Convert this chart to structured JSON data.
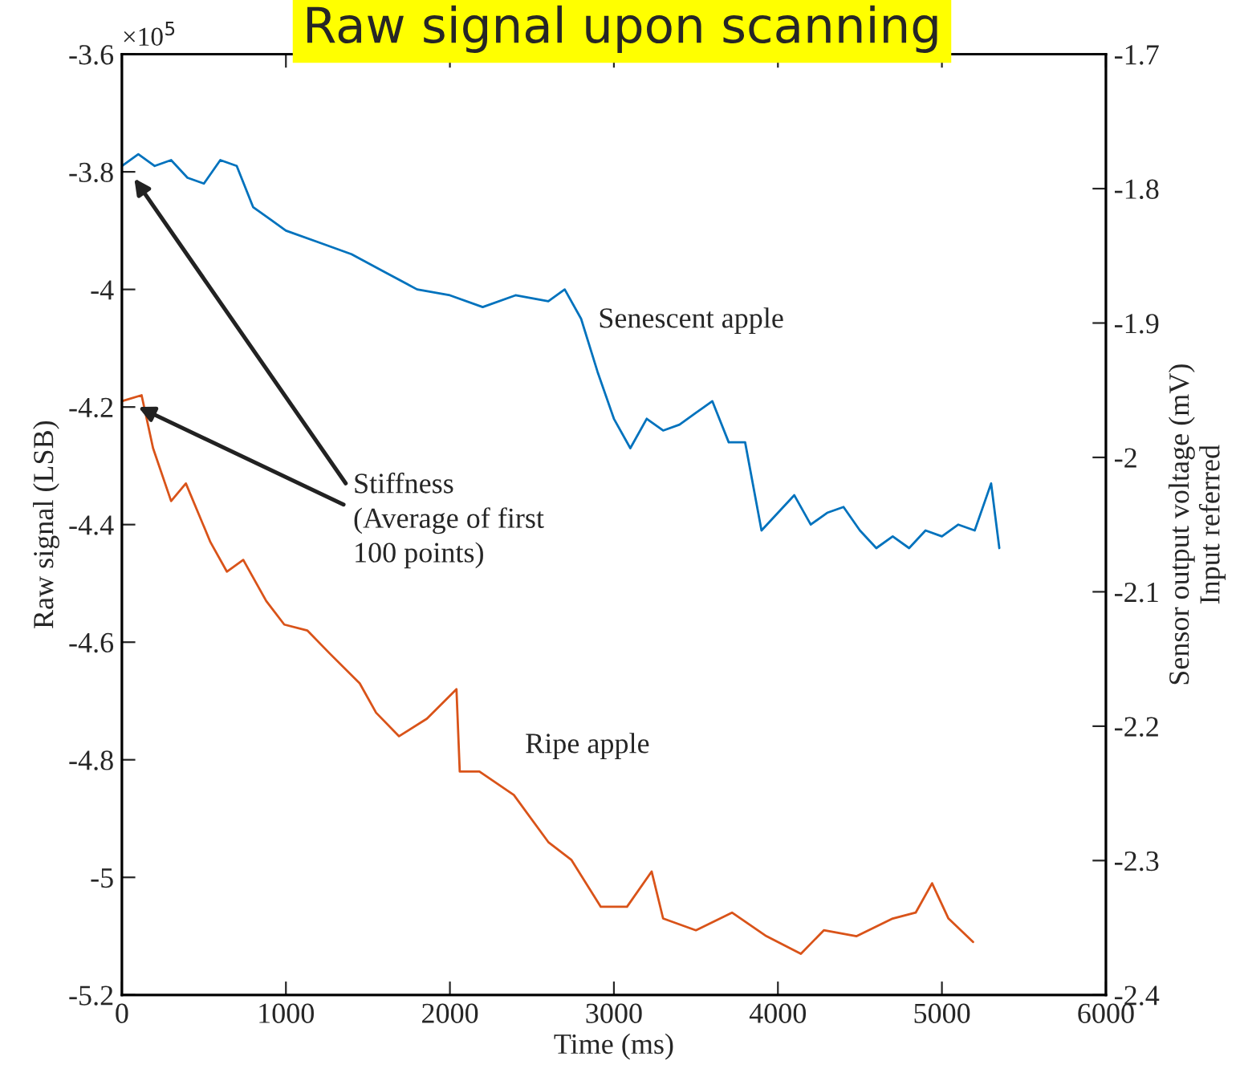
{
  "chart_data": {
    "type": "line",
    "title": "Raw signal upon scanning",
    "xlabel": "Time (ms)",
    "ylabel": "Raw signal (LSB)",
    "y2label": "Sensor output voltage (mV)\nInput referred",
    "xlim": [
      0,
      6000
    ],
    "xticks": [
      0,
      1000,
      2000,
      3000,
      4000,
      5000,
      6000
    ],
    "ylim": [
      -5.2,
      -3.6
    ],
    "yticks": [
      -5.2,
      -5,
      -4.8,
      -4.6,
      -4.4,
      -4.2,
      -4,
      -3.8,
      -3.6
    ],
    "y2lim": [
      -2.4,
      -1.7
    ],
    "y2ticks": [
      -2.4,
      -2.3,
      -2.2,
      -2.1,
      -2,
      -1.9,
      -1.8,
      -1.7
    ],
    "grid": false,
    "legend": false,
    "marker": "none",
    "line_style": "solid",
    "annotations": [
      "×10$^{5}$",
      {
        "text": "Stiffness\n(Average of first\n100 points)",
        "x": 100,
        "y": -4.2
      }
    ],
    "series": [
      {
        "name": "Senescent apple",
        "color": "#0072bd",
        "x": [
          0,
          100,
          200,
          300,
          400,
          500,
          600,
          700,
          800,
          900,
          1000,
          1200,
          1400,
          1600,
          1800,
          2000,
          2200,
          2400,
          2600,
          2700,
          2800,
          2900,
          3000,
          3100,
          3200,
          3300,
          3400,
          3500,
          3600,
          3700,
          3800,
          3900,
          4000,
          4100,
          4200,
          4300,
          4400,
          4500,
          4600,
          4700,
          4800,
          4900,
          5000,
          5100,
          5200,
          5300,
          5350
        ],
        "values": [
          -3.79,
          -3.77,
          -3.79,
          -3.78,
          -3.81,
          -3.82,
          -3.78,
          -3.79,
          -3.86,
          -3.88,
          -3.9,
          -3.92,
          -3.94,
          -3.97,
          -4.0,
          -4.01,
          -4.03,
          -4.01,
          -4.02,
          -4.0,
          -4.05,
          -4.14,
          -4.22,
          -4.27,
          -4.22,
          -4.24,
          -4.23,
          -4.21,
          -4.19,
          -4.26,
          -4.26,
          -4.41,
          -4.38,
          -4.35,
          -4.4,
          -4.38,
          -4.37,
          -4.41,
          -4.44,
          -4.42,
          -4.44,
          -4.41,
          -4.42,
          -4.4,
          -4.41,
          -4.33,
          -4.44
        ]
      },
      {
        "name": "Ripe apple",
        "color": "#d95319",
        "x": [
          0,
          120,
          190,
          300,
          390,
          540,
          640,
          740,
          880,
          990,
          1130,
          1270,
          1450,
          1550,
          1690,
          1860,
          2040,
          2060,
          2180,
          2390,
          2600,
          2740,
          2920,
          3080,
          3230,
          3300,
          3500,
          3720,
          3930,
          4140,
          4280,
          4480,
          4700,
          4840,
          4940,
          5040,
          5190
        ],
        "values": [
          -4.19,
          -4.18,
          -4.27,
          -4.36,
          -4.33,
          -4.43,
          -4.48,
          -4.46,
          -4.53,
          -4.57,
          -4.58,
          -4.62,
          -4.67,
          -4.72,
          -4.76,
          -4.73,
          -4.68,
          -4.82,
          -4.82,
          -4.86,
          -4.94,
          -4.97,
          -5.05,
          -5.05,
          -4.99,
          -5.07,
          -5.09,
          -5.06,
          -5.1,
          -5.13,
          -5.09,
          -5.1,
          -5.07,
          -5.06,
          -5.01,
          -5.07,
          -5.11
        ]
      }
    ]
  }
}
